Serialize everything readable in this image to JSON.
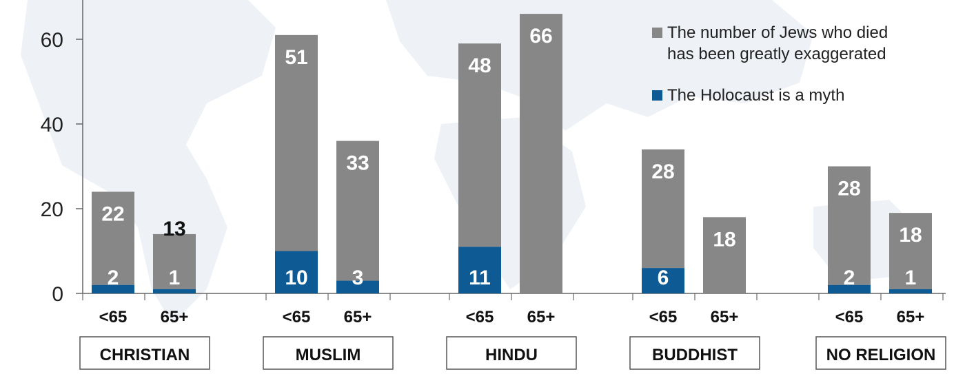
{
  "chart_data": {
    "type": "bar",
    "stacked": true,
    "ylim": [
      0,
      70
    ],
    "yticks": [
      0,
      20,
      40,
      60
    ],
    "groups": [
      {
        "name": "CHRISTIAN",
        "bars": [
          {
            "age": "<65",
            "myth": 2,
            "exaggerated": 22,
            "total": 24
          },
          {
            "age": "65+",
            "myth": 1,
            "exaggerated": 13,
            "total": 14
          }
        ]
      },
      {
        "name": "MUSLIM",
        "bars": [
          {
            "age": "<65",
            "myth": 10,
            "exaggerated": 51,
            "total": 61
          },
          {
            "age": "65+",
            "myth": 3,
            "exaggerated": 33,
            "total": 36
          }
        ]
      },
      {
        "name": "HINDU",
        "bars": [
          {
            "age": "<65",
            "myth": 11,
            "exaggerated": 48,
            "total": 59
          },
          {
            "age": "65+",
            "myth": 0,
            "exaggerated": 66,
            "total": 66
          }
        ]
      },
      {
        "name": "BUDDHIST",
        "bars": [
          {
            "age": "<65",
            "myth": 6,
            "exaggerated": 28,
            "total": 34
          },
          {
            "age": "65+",
            "myth": 0,
            "exaggerated": 18,
            "total": 18
          }
        ]
      },
      {
        "name": "NO RELIGION",
        "bars": [
          {
            "age": "<65",
            "myth": 2,
            "exaggerated": 28,
            "total": 30
          },
          {
            "age": "65+",
            "myth": 1,
            "exaggerated": 18,
            "total": 19
          }
        ]
      }
    ],
    "legend": [
      {
        "key": "exaggerated",
        "lines": [
          "The number of Jews who died",
          "has been greatly exaggerated"
        ],
        "color": "#878787"
      },
      {
        "key": "myth",
        "lines": [
          "The Holocaust is a myth"
        ],
        "color": "#0d5a94"
      }
    ],
    "legend_position": "top-right",
    "grid": false
  }
}
